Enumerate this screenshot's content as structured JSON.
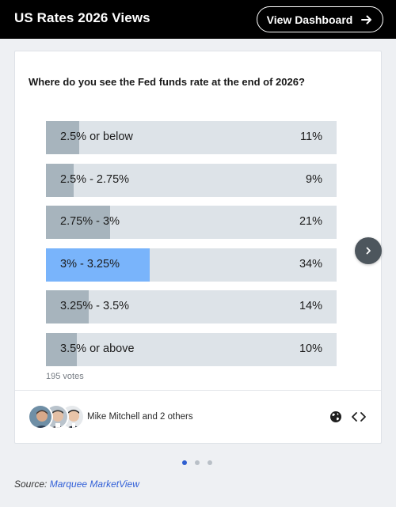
{
  "header": {
    "title": "US Rates 2026 Views",
    "button_label": "View Dashboard"
  },
  "poll": {
    "question": "Where do you see the Fed funds rate at the end of 2026?",
    "options": [
      {
        "label": "2.5% or below",
        "percent_label": "11%",
        "percent": 11,
        "selected": false
      },
      {
        "label": "2.5% - 2.75%",
        "percent_label": "9%",
        "percent": 9,
        "selected": false
      },
      {
        "label": "2.75% - 3%",
        "percent_label": "21%",
        "percent": 21,
        "selected": false
      },
      {
        "label": "3% - 3.25%",
        "percent_label": "34%",
        "percent": 34,
        "selected": true
      },
      {
        "label": "3.25% - 3.5%",
        "percent_label": "14%",
        "percent": 14,
        "selected": false
      },
      {
        "label": "3.5% or above",
        "percent_label": "10%",
        "percent": 10,
        "selected": false
      }
    ],
    "votes": "195 votes"
  },
  "authors": {
    "text": "Mike Mitchell and 2 others",
    "avatars": [
      "avatar-1",
      "avatar-2",
      "avatar-3"
    ]
  },
  "icons": {
    "globe": "globe-icon",
    "code": "code-icon",
    "next": "chevron-right-icon",
    "arrow": "arrow-right-icon"
  },
  "carousel": {
    "dots": 3,
    "active_index": 0
  },
  "source": {
    "prefix": "Source:",
    "link": "Marquee MarketView"
  },
  "colors": {
    "header_bg": "#000000",
    "bar_track": "#dde3e8",
    "bar_fill": "#a7b4bd",
    "bar_selected": "#79b4fb",
    "link": "#3361d8",
    "dot_active": "#2f5fd0"
  }
}
